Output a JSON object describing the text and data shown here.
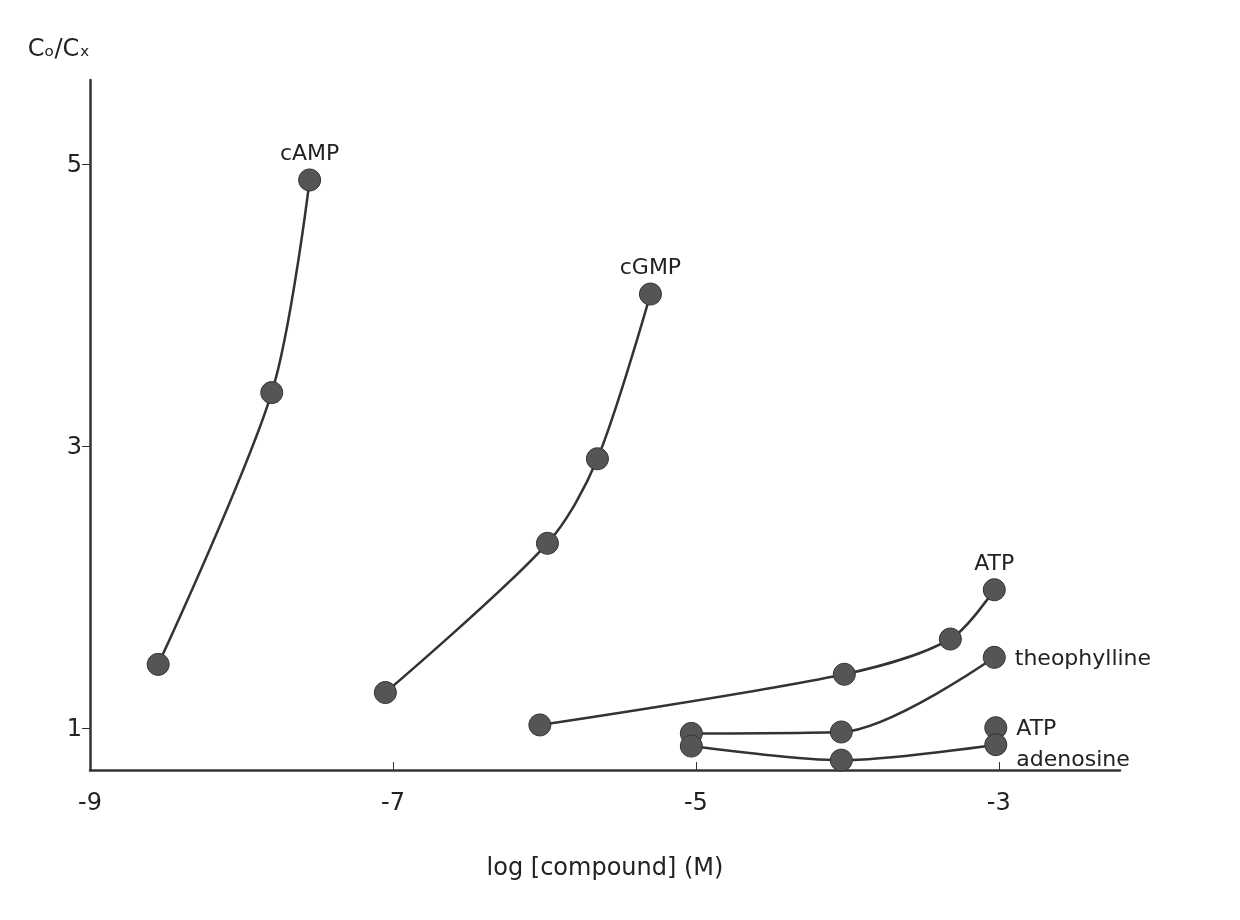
{
  "chart_data": {
    "type": "line",
    "xlabel": "log [compound] (M)",
    "ylabel": "Cₒ/Cₓ",
    "xlim": [
      -9,
      -2.2
    ],
    "xticks": [
      -9,
      -7,
      -5,
      -3
    ],
    "ylim": [
      0.7,
      5.6
    ],
    "yticks": [
      1,
      3,
      5
    ],
    "grid": false,
    "marker": "circle",
    "line_style": "solid",
    "series": [
      {
        "name": "cAMP",
        "color": "#333333",
        "x": [
          -8.55,
          -7.8,
          -7.55
        ],
        "values": [
          1.45,
          3.38,
          4.89
        ]
      },
      {
        "name": "cGMP",
        "color": "#333333",
        "x": [
          -7.05,
          -5.98,
          -5.65,
          -5.3
        ],
        "values": [
          1.25,
          2.31,
          2.91,
          4.08
        ]
      },
      {
        "name": "ATP",
        "color": "#333333",
        "x": [
          -6.03,
          -4.02,
          -3.32,
          -3.03
        ],
        "values": [
          1.02,
          1.38,
          1.63,
          1.98
        ]
      },
      {
        "name": "theophylline",
        "color": "#333333",
        "x": [
          -5.03,
          -4.04,
          -3.03
        ],
        "values": [
          0.96,
          0.97,
          1.5
        ]
      },
      {
        "name": "ATP",
        "color": "#333333",
        "x": [
          -3.02
        ],
        "values": [
          1.0
        ]
      },
      {
        "name": "adenosine",
        "color": "#333333",
        "x": [
          -5.03,
          -4.04,
          -3.02
        ],
        "values": [
          0.87,
          0.77,
          0.88
        ]
      }
    ]
  }
}
